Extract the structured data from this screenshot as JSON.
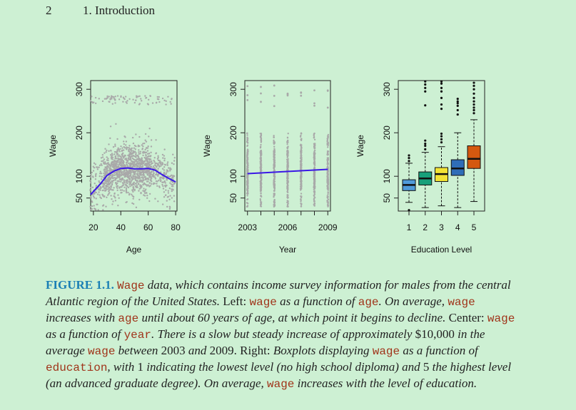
{
  "header": {
    "page_number": "2",
    "chapter_title": "1.  Introduction"
  },
  "caption": {
    "label": "FIGURE 1.1.",
    "segments": [
      {
        "t": "code",
        "v": "Wage"
      },
      {
        "t": "it",
        "v": " data, which contains income survey information for males from the central Atlantic region of the United States. "
      },
      {
        "t": "up",
        "v": "Left: "
      },
      {
        "t": "code",
        "v": "wage"
      },
      {
        "t": "it",
        "v": " as a function of "
      },
      {
        "t": "code",
        "v": "age"
      },
      {
        "t": "it",
        "v": ". On average, "
      },
      {
        "t": "code",
        "v": "wage"
      },
      {
        "t": "it",
        "v": " increases with "
      },
      {
        "t": "code",
        "v": "age"
      },
      {
        "t": "it",
        "v": " until about 60 years of age, at which point it begins to decline. "
      },
      {
        "t": "up",
        "v": "Center: "
      },
      {
        "t": "code",
        "v": "wage"
      },
      {
        "t": "it",
        "v": " as a function of "
      },
      {
        "t": "code",
        "v": "year"
      },
      {
        "t": "it",
        "v": ". There is a slow but steady increase of approximately "
      },
      {
        "t": "up",
        "v": "$10,000"
      },
      {
        "t": "it",
        "v": " in the average "
      },
      {
        "t": "code",
        "v": "wage"
      },
      {
        "t": "it",
        "v": " between "
      },
      {
        "t": "up",
        "v": "2003"
      },
      {
        "t": "it",
        "v": " and "
      },
      {
        "t": "up",
        "v": "2009. Right: "
      },
      {
        "t": "it",
        "v": "Boxplots displaying "
      },
      {
        "t": "code",
        "v": "wage"
      },
      {
        "t": "it",
        "v": " as a function of "
      },
      {
        "t": "code",
        "v": "education"
      },
      {
        "t": "it",
        "v": ", with "
      },
      {
        "t": "up",
        "v": "1"
      },
      {
        "t": "it",
        "v": " indicating the lowest level (no high school diploma) and "
      },
      {
        "t": "up",
        "v": "5"
      },
      {
        "t": "it",
        "v": " the highest level (an advanced graduate degree). On average, "
      },
      {
        "t": "code",
        "v": "wage"
      },
      {
        "t": "it",
        "v": " increases with the level of education."
      }
    ]
  },
  "colors": {
    "points": "#a9a9a9",
    "fit_line": "#3a17e6",
    "box_fills": [
      "#4f9bd9",
      "#17a07a",
      "#f2e335",
      "#2f6db8",
      "#d4580f"
    ],
    "caption_label": "#1a7fb5",
    "code_text": "#a0341a",
    "background": "#cdf0d3"
  },
  "chart_data": [
    {
      "type": "scatter",
      "xlabel": "Age",
      "ylabel": "Wage",
      "xlim": [
        18,
        81
      ],
      "ylim": [
        20,
        320
      ],
      "xticks": [
        20,
        40,
        60,
        80
      ],
      "yticks": [
        50,
        100,
        200,
        300
      ],
      "series": [
        {
          "type": "line",
          "x": [
            18,
            25,
            30,
            35,
            40,
            45,
            50,
            55,
            60,
            65,
            70,
            75,
            80
          ],
          "y": [
            58,
            82,
            102,
            112,
            118,
            119,
            117,
            117,
            118,
            114,
            104,
            95,
            87
          ]
        }
      ]
    },
    {
      "type": "scatter",
      "xlabel": "Year",
      "ylabel": "Wage",
      "xlim": [
        2002.8,
        2009.2
      ],
      "ylim": [
        20,
        320
      ],
      "xticks": [
        2003,
        2006,
        2009
      ],
      "yticks": [
        50,
        100,
        200,
        300
      ],
      "year_columns": [
        2003,
        2004,
        2005,
        2006,
        2007,
        2008,
        2009
      ],
      "series": [
        {
          "type": "line",
          "x": [
            2003,
            2009
          ],
          "y": [
            106,
            116
          ]
        }
      ]
    },
    {
      "type": "box",
      "xlabel": "Education Level",
      "ylabel": "Wage",
      "ylim": [
        20,
        320
      ],
      "categories": [
        "1",
        "2",
        "3",
        "4",
        "5"
      ],
      "yticks": [
        50,
        100,
        200,
        300
      ],
      "boxes": [
        {
          "q1": 67,
          "median": 80,
          "q3": 92,
          "whisker_low": 40,
          "whisker_high": 130,
          "outliers": [
            22,
            135,
            142,
            148
          ]
        },
        {
          "q1": 80,
          "median": 95,
          "q3": 110,
          "whisker_low": 28,
          "whisker_high": 155,
          "outliers": [
            162,
            170,
            175,
            182,
            263,
            295,
            303,
            311,
            318
          ]
        },
        {
          "q1": 88,
          "median": 105,
          "q3": 120,
          "whisker_low": 32,
          "whisker_high": 168,
          "outliers": [
            178,
            185,
            192,
            198,
            255,
            265,
            280,
            295,
            303,
            313,
            318
          ]
        },
        {
          "q1": 102,
          "median": 118,
          "q3": 138,
          "whisker_low": 28,
          "whisker_high": 200,
          "outliers": [
            242,
            252,
            262,
            268,
            272,
            278
          ]
        },
        {
          "q1": 118,
          "median": 140,
          "q3": 170,
          "whisker_low": 42,
          "whisker_high": 230,
          "outliers": [
            245,
            252,
            258,
            265,
            272,
            280,
            290,
            300,
            308,
            315
          ]
        }
      ]
    }
  ]
}
